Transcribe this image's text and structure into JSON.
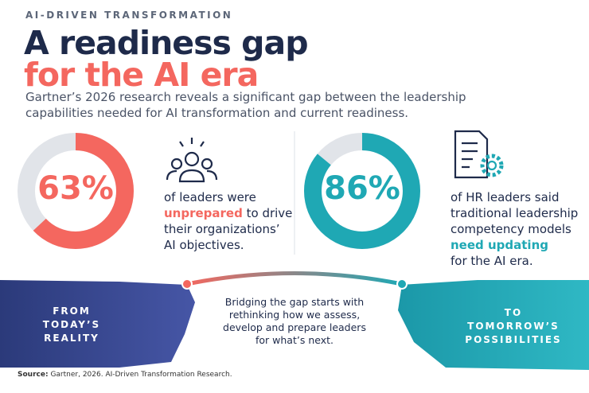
{
  "eyebrow": "AI-DRIVEN TRANSFORMATION",
  "title": {
    "line1": "A readiness gap",
    "line2": "for the AI era"
  },
  "subtitle": "Gartner’s 2026 research reveals a significant gap between the leadership capabilities needed for AI transformation and current readiness.",
  "stats": [
    {
      "value": 63,
      "value_label": "63%",
      "color": "#f4675f",
      "before": "of leaders were",
      "highlight": "unprepared",
      "after": "to drive their organizations’ AI objectives."
    },
    {
      "value": 86,
      "value_label": "86%",
      "color": "#1fa8b4",
      "before": "of HR leaders said traditional leadership competency models",
      "highlight": "need updating",
      "after": "for the AI era."
    }
  ],
  "bridge": {
    "left": [
      "FROM",
      "TODAY’S",
      "REALITY"
    ],
    "center": "Bridging the gap starts with rethinking how we assess, develop and prepare leaders for what’s next.",
    "right": [
      "TO",
      "TOMORROW’S",
      "POSSIBILITIES"
    ]
  },
  "source": {
    "label": "Source:",
    "text": "Gartner, 2026. AI-Driven Transformation Research."
  }
}
